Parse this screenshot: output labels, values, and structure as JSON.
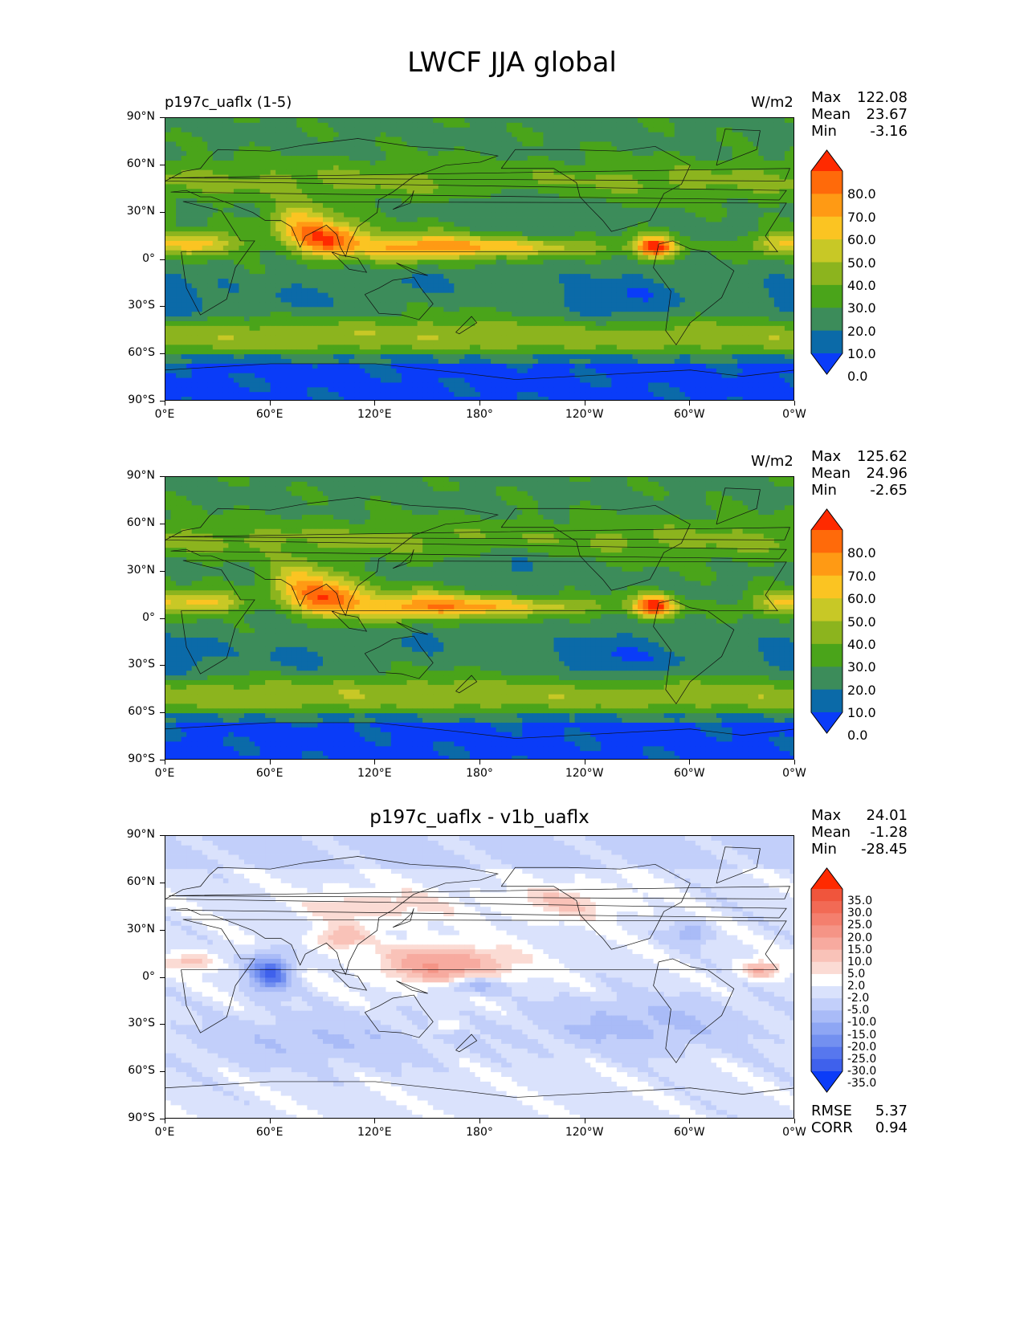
{
  "figure_title": "LWCF JJA global",
  "chart_data": [
    {
      "type": "heatmap",
      "map": "global filled-contour map (PlateCarree, cyclic 0°E-0°W)",
      "title_left": "p197c_uaflx (1-5)",
      "title_center": "",
      "units": "W/m2",
      "xlim": [
        0,
        360
      ],
      "ylim": [
        -90,
        90
      ],
      "x_ticks": [
        "0°E",
        "60°E",
        "120°E",
        "180°",
        "120°W",
        "60°W",
        "0°W"
      ],
      "y_ticks": [
        "90°N",
        "60°N",
        "30°N",
        "0°",
        "30°S",
        "60°S",
        "90°S"
      ],
      "stats": {
        "max_label": "Max",
        "max": "122.08",
        "mean_label": "Mean",
        "mean": "23.67",
        "min_label": "Min",
        "min": "-3.16"
      },
      "colorbar": {
        "extend": "both",
        "levels": [
          "80.0",
          "70.0",
          "60.0",
          "50.0",
          "40.0",
          "30.0",
          "20.0",
          "10.0",
          "0.0"
        ],
        "colors": [
          "#ff2a00",
          "#ff6a0a",
          "#ff9a14",
          "#fbc422",
          "#c8c826",
          "#8cb41e",
          "#4aa41a",
          "#3c8c5a",
          "#0b6aa8",
          "#0a3cf8"
        ]
      }
    },
    {
      "type": "heatmap",
      "map": "global filled-contour map (PlateCarree, cyclic 0°E-0°W)",
      "title_left": "",
      "title_center": "",
      "units": "W/m2",
      "xlim": [
        0,
        360
      ],
      "ylim": [
        -90,
        90
      ],
      "x_ticks": [
        "0°E",
        "60°E",
        "120°E",
        "180°",
        "120°W",
        "60°W",
        "0°W"
      ],
      "y_ticks": [
        "90°N",
        "60°N",
        "30°N",
        "0°",
        "30°S",
        "60°S",
        "90°S"
      ],
      "stats": {
        "max_label": "Max",
        "max": "125.62",
        "mean_label": "Mean",
        "mean": "24.96",
        "min_label": "Min",
        "min": "-2.65"
      },
      "colorbar": {
        "extend": "both",
        "levels": [
          "80.0",
          "70.0",
          "60.0",
          "50.0",
          "40.0",
          "30.0",
          "20.0",
          "10.0",
          "0.0"
        ],
        "colors": [
          "#ff2a00",
          "#ff6a0a",
          "#ff9a14",
          "#fbc422",
          "#c8c826",
          "#8cb41e",
          "#4aa41a",
          "#3c8c5a",
          "#0b6aa8",
          "#0a3cf8"
        ]
      }
    },
    {
      "type": "heatmap",
      "map": "global filled-contour difference map (PlateCarree, cyclic 0°E-0°W)",
      "title_left": "",
      "title_center": "p197c_uaflx - v1b_uaflx",
      "units": "",
      "xlim": [
        0,
        360
      ],
      "ylim": [
        -90,
        90
      ],
      "x_ticks": [
        "0°E",
        "60°E",
        "120°E",
        "180°",
        "120°W",
        "60°W",
        "0°W"
      ],
      "y_ticks": [
        "90°N",
        "60°N",
        "30°N",
        "0°",
        "30°S",
        "60°S",
        "90°S"
      ],
      "stats": {
        "max_label": "Max",
        "max": "24.01",
        "mean_label": "Mean",
        "mean": "-1.28",
        "min_label": "Min",
        "min": "-28.45"
      },
      "metrics": {
        "rmse_label": "RMSE",
        "rmse": "5.37",
        "corr_label": "CORR",
        "corr": "0.94"
      },
      "colorbar": {
        "extend": "both",
        "levels": [
          "35.0",
          "30.0",
          "25.0",
          "20.0",
          "15.0",
          "10.0",
          "5.0",
          "2.0",
          "-2.0",
          "-5.0",
          "-10.0",
          "-15.0",
          "-20.0",
          "-25.0",
          "-30.0",
          "-35.0"
        ],
        "colors": [
          "#ff2a00",
          "#f0553c",
          "#f26a55",
          "#f47f6e",
          "#f59486",
          "#f7aa9f",
          "#f9c2b8",
          "#fbdbd4",
          "#ffffff",
          "#dae2fc",
          "#c2cffa",
          "#a9bbf7",
          "#8ea6f4",
          "#7390f0",
          "#5777ee",
          "#3f61ec",
          "#0b3cf8"
        ]
      }
    }
  ]
}
